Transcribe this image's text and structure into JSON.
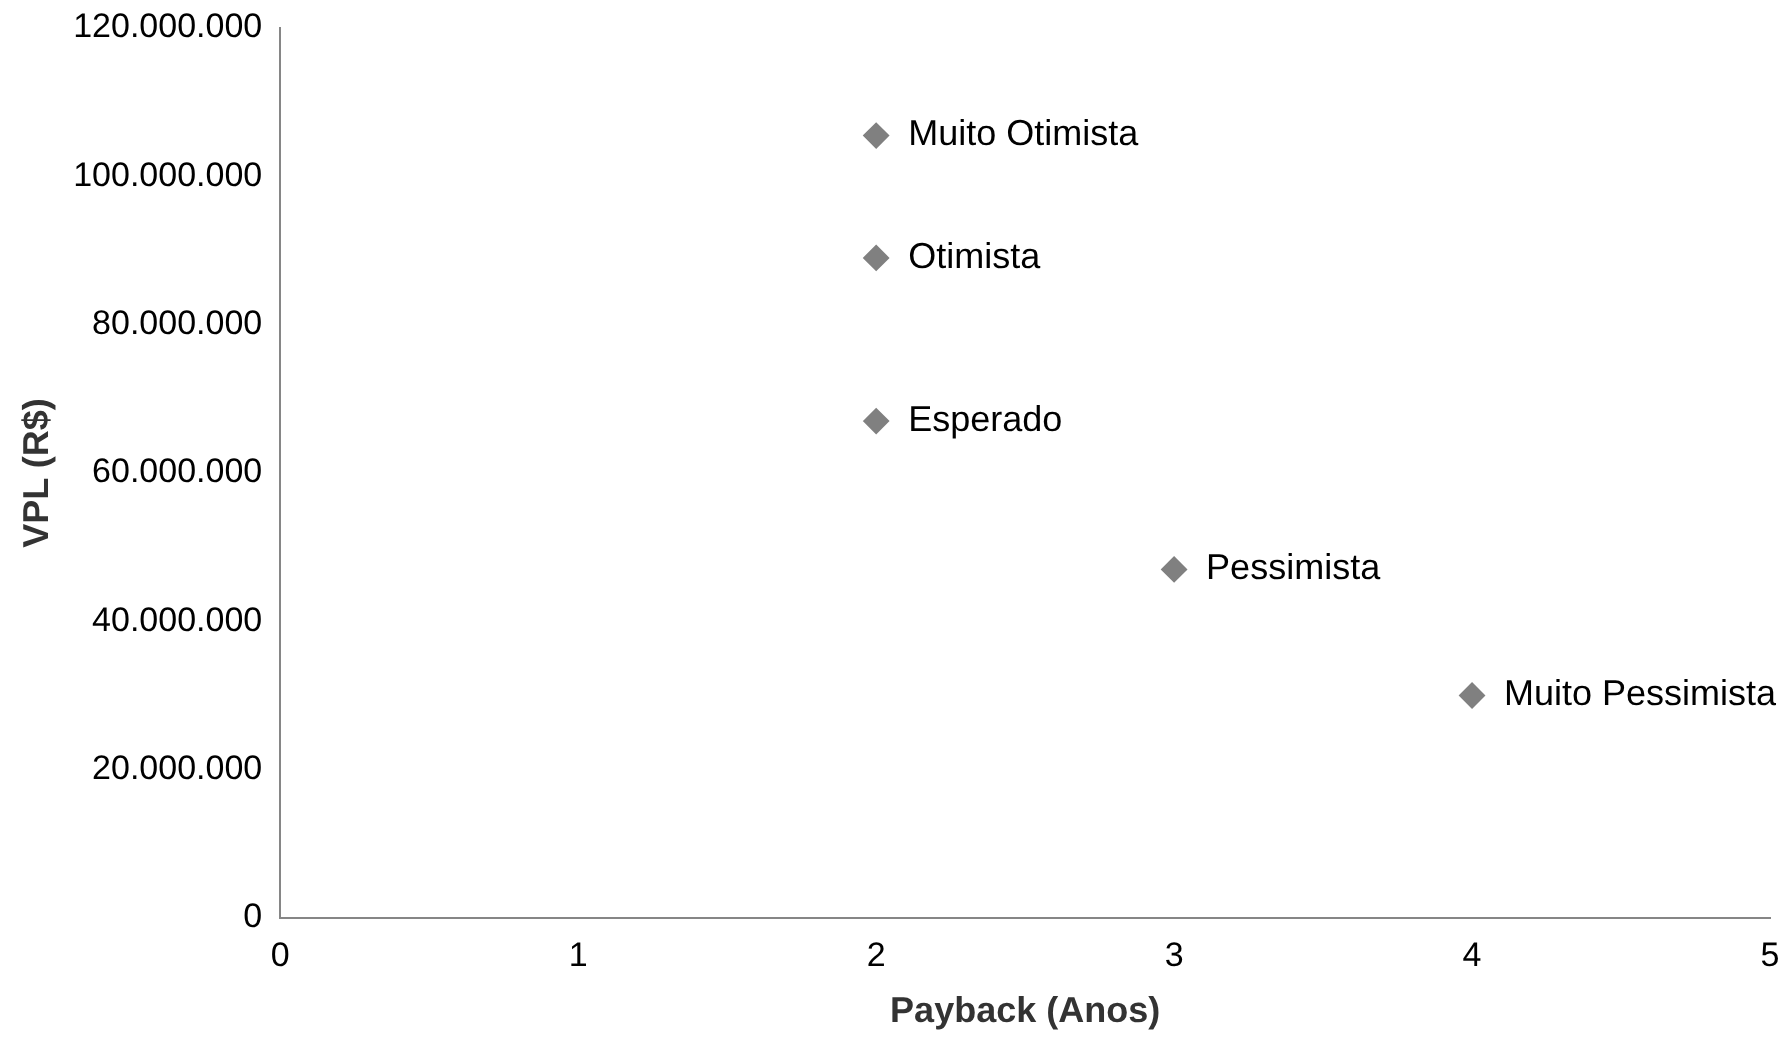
{
  "chart_data": {
    "type": "scatter",
    "xlabel": "Payback (Anos)",
    "ylabel": "VPL (R$)",
    "x": [
      2,
      2,
      2,
      3,
      4
    ],
    "series": [
      {
        "color": "#808080",
        "values": [
          105500000,
          89000000,
          67000000,
          47000000,
          30000000
        ]
      }
    ],
    "xlim": [
      0,
      5
    ],
    "xticks": [
      0,
      1,
      2,
      3,
      4,
      5
    ],
    "ylim": [
      0,
      120000000
    ],
    "yticks": [
      0,
      {
        "value": 20000000,
        "label": "20.000.000"
      },
      {
        "value": 40000000,
        "label": "40.000.000"
      },
      {
        "value": 60000000,
        "label": "60.000.000"
      },
      {
        "value": 80000000,
        "label": "80.000.000"
      },
      {
        "value": 100000000,
        "label": "100.000.000"
      },
      {
        "value": 120000000,
        "label": "120.000.000"
      }
    ],
    "grid": false,
    "legend": false,
    "marker": "diamond",
    "annotations": [
      {
        "text": "Muito Otimista",
        "x": 2,
        "y": 105500000
      },
      {
        "text": "Otimista",
        "x": 2,
        "y": 89000000
      },
      {
        "text": "Esperado",
        "x": 2,
        "y": 67000000
      },
      {
        "text": "Pessimista",
        "x": 3,
        "y": 47000000
      },
      {
        "text": "Muito Pessimista",
        "x": 4,
        "y": 30000000
      }
    ]
  }
}
